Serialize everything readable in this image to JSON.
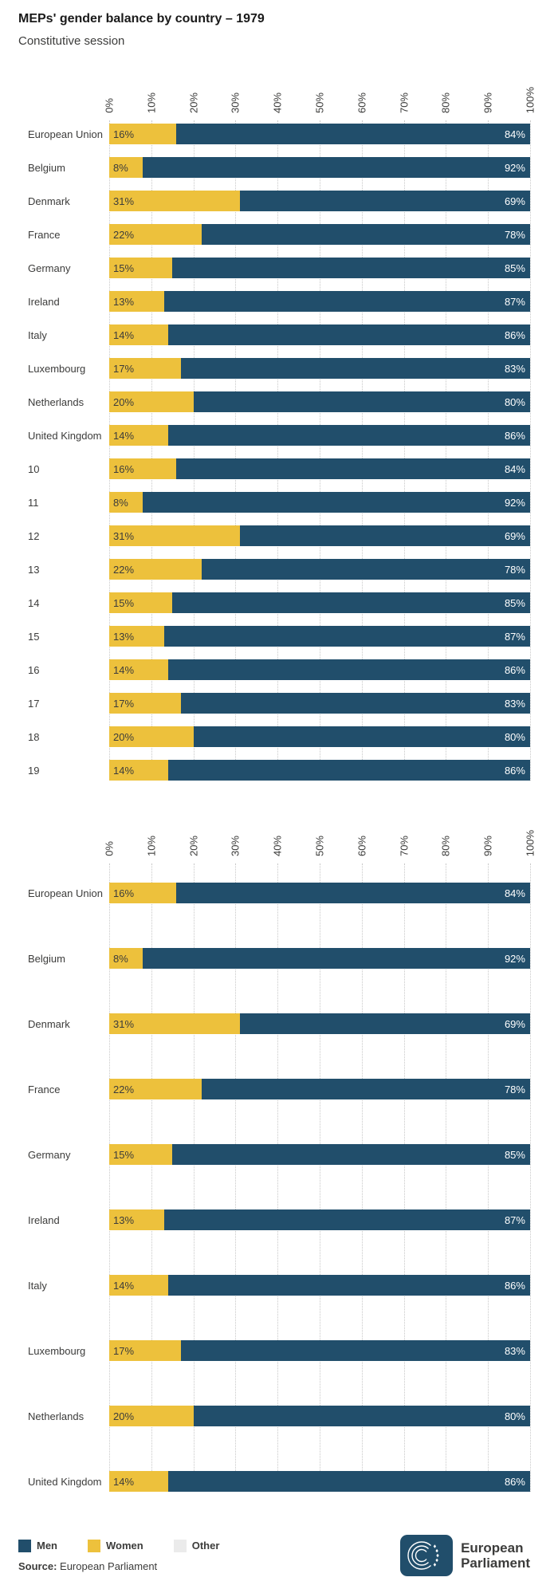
{
  "header": {
    "title": "MEPs' gender balance by country – 1979",
    "subtitle": "Constitutive session"
  },
  "colors": {
    "men": "#214e6b",
    "women": "#edc13c",
    "other": "#ebebeb",
    "grid": "#c8c8c8",
    "text": "#3c3c3b",
    "logo_bg": "#214e6b"
  },
  "legend": {
    "items": [
      {
        "key": "men",
        "label": "Men"
      },
      {
        "key": "women",
        "label": "Women"
      },
      {
        "key": "other",
        "label": "Other"
      }
    ]
  },
  "source": {
    "label": "Source:",
    "text": "European Parliament"
  },
  "logo": {
    "line1": "European",
    "line2": "Parliament"
  },
  "chart_data": [
    {
      "type": "bar",
      "orientation": "horizontal",
      "stacked": true,
      "unit": "%",
      "xlim": [
        0,
        100
      ],
      "grid": true,
      "x_ticks": [
        "0%",
        "10%",
        "20%",
        "30%",
        "40%",
        "50%",
        "60%",
        "70%",
        "80%",
        "90%",
        "100%"
      ],
      "categories": [
        "European Union",
        "Belgium",
        "Denmark",
        "France",
        "Germany",
        "Ireland",
        "Italy",
        "Luxembourg",
        "Netherlands",
        "United Kingdom",
        "10",
        "11",
        "12",
        "13",
        "14",
        "15",
        "16",
        "17",
        "18",
        "19"
      ],
      "series": [
        {
          "name": "Women",
          "color": "#edc13c",
          "values": [
            16,
            8,
            31,
            22,
            15,
            13,
            14,
            17,
            20,
            14,
            16,
            8,
            31,
            22,
            15,
            13,
            14,
            17,
            20,
            14
          ]
        },
        {
          "name": "Men",
          "color": "#214e6b",
          "values": [
            84,
            92,
            69,
            78,
            85,
            87,
            86,
            83,
            80,
            86,
            84,
            92,
            69,
            78,
            85,
            87,
            86,
            83,
            80,
            86
          ]
        }
      ]
    },
    {
      "type": "bar",
      "orientation": "horizontal",
      "stacked": true,
      "unit": "%",
      "xlim": [
        0,
        100
      ],
      "grid": true,
      "x_ticks": [
        "0%",
        "10%",
        "20%",
        "30%",
        "40%",
        "50%",
        "60%",
        "70%",
        "80%",
        "90%",
        "100%"
      ],
      "categories": [
        "European Union",
        "Belgium",
        "Denmark",
        "France",
        "Germany",
        "Ireland",
        "Italy",
        "Luxembourg",
        "Netherlands",
        "United Kingdom"
      ],
      "series": [
        {
          "name": "Women",
          "color": "#edc13c",
          "values": [
            16,
            8,
            31,
            22,
            15,
            13,
            14,
            17,
            20,
            14
          ]
        },
        {
          "name": "Men",
          "color": "#214e6b",
          "values": [
            84,
            92,
            69,
            78,
            85,
            87,
            86,
            83,
            80,
            86
          ]
        }
      ]
    }
  ]
}
